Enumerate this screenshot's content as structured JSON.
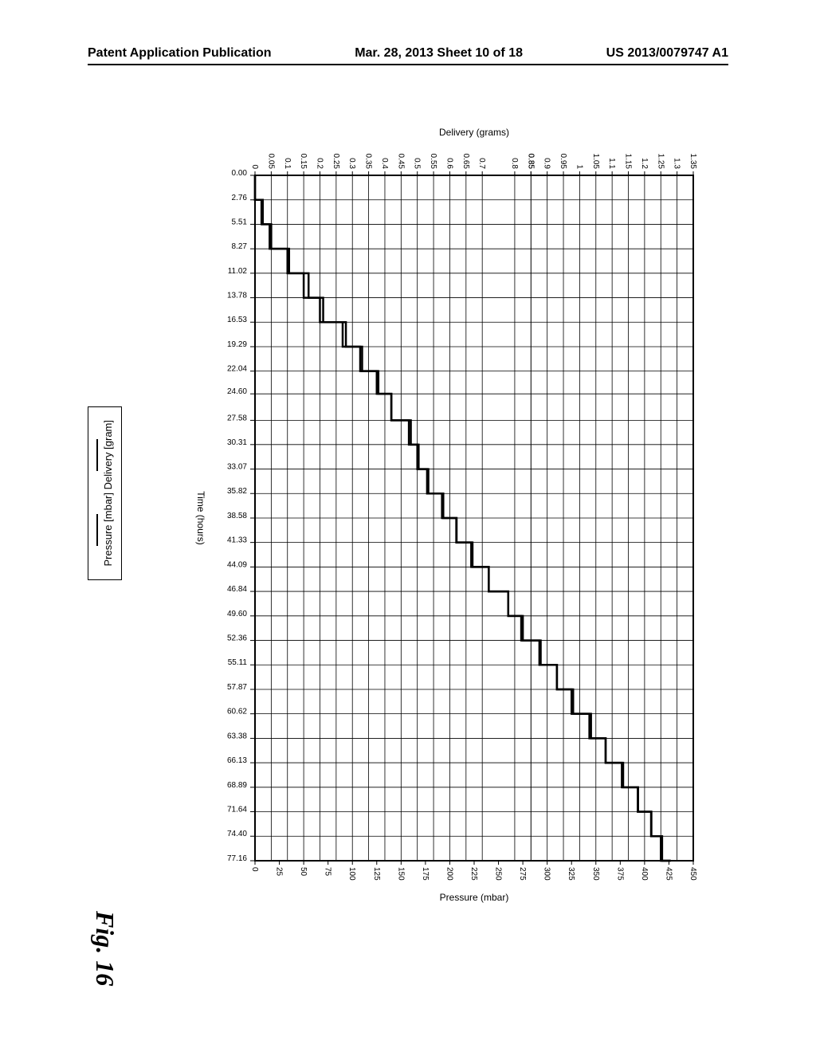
{
  "header": {
    "left": "Patent Application Publication",
    "center": "Mar. 28, 2013  Sheet 10 of 18",
    "right": "US 2013/0079747 A1"
  },
  "legend": {
    "item1": "Delivery [gram]",
    "item2": "Pressure [mbar]"
  },
  "figure_label": "Fig. 16",
  "chart": {
    "type": "line",
    "background_color": "#ffffff",
    "grid_color": "#000000",
    "line_color": "#000000",
    "line_width": 2.5,
    "font_family": "Arial",
    "tick_fontsize": 10,
    "axis_label_fontsize": 12,
    "rotated": true,
    "time_axis": {
      "label": "Time (hours)",
      "ticks": [
        "0.00",
        "2.76",
        "5.51",
        "8.27",
        "11.02",
        "13.78",
        "16.53",
        "19.29",
        "22.04",
        "24.60",
        "27.58",
        "30.31",
        "33.07",
        "35.82",
        "38.58",
        "41.33",
        "44.09",
        "46.84",
        "49.60",
        "52.36",
        "55.11",
        "57.87",
        "60.62",
        "63.38",
        "66.13",
        "68.89",
        "71.64",
        "74.40",
        "77.16"
      ],
      "domain": [
        0,
        77.16
      ]
    },
    "delivery_axis": {
      "label": "Delivery (grams)",
      "ticks": [
        0,
        0.05,
        0.1,
        0.15,
        0.2,
        0.25,
        0.3,
        0.35,
        0.4,
        0.45,
        0.5,
        0.55,
        0.6,
        0.65,
        0.7,
        0.85,
        0.8,
        0.85,
        0.9,
        0.95,
        1,
        1.05,
        1.1,
        1.15,
        1.2,
        1.25,
        1.3,
        1.35
      ],
      "domain": [
        0,
        1.35
      ]
    },
    "pressure_axis": {
      "label": "Pressure (mbar)",
      "ticks": [
        0,
        25,
        50,
        75,
        100,
        125,
        150,
        175,
        200,
        225,
        250,
        275,
        300,
        325,
        350,
        375,
        400,
        425,
        450
      ],
      "domain": [
        0,
        450
      ]
    },
    "series": {
      "combined_note": "Delivery and Pressure traces overlap visually as a single descending step-line from top-left to bottom-right in the rotated orientation",
      "delivery": [
        {
          "t": 0.0,
          "v": 0.0
        },
        {
          "t": 2.76,
          "v": 0.02
        },
        {
          "t": 5.51,
          "v": 0.05
        },
        {
          "t": 8.27,
          "v": 0.1
        },
        {
          "t": 11.02,
          "v": 0.15
        },
        {
          "t": 13.78,
          "v": 0.2
        },
        {
          "t": 16.53,
          "v": 0.28
        },
        {
          "t": 19.29,
          "v": 0.33
        },
        {
          "t": 22.04,
          "v": 0.38
        },
        {
          "t": 24.6,
          "v": 0.42
        },
        {
          "t": 27.58,
          "v": 0.48
        },
        {
          "t": 30.31,
          "v": 0.5
        },
        {
          "t": 33.07,
          "v": 0.53
        },
        {
          "t": 35.82,
          "v": 0.58
        },
        {
          "t": 38.58,
          "v": 0.62
        },
        {
          "t": 41.33,
          "v": 0.67
        },
        {
          "t": 44.09,
          "v": 0.72
        },
        {
          "t": 46.84,
          "v": 0.78
        },
        {
          "t": 49.6,
          "v": 0.82
        },
        {
          "t": 52.36,
          "v": 0.88
        },
        {
          "t": 55.11,
          "v": 0.93
        },
        {
          "t": 57.87,
          "v": 0.98
        },
        {
          "t": 60.62,
          "v": 1.03
        },
        {
          "t": 63.38,
          "v": 1.08
        },
        {
          "t": 66.13,
          "v": 1.13
        },
        {
          "t": 68.89,
          "v": 1.18
        },
        {
          "t": 71.64,
          "v": 1.22
        },
        {
          "t": 74.4,
          "v": 1.25
        },
        {
          "t": 77.16,
          "v": 1.28
        }
      ],
      "pressure": [
        {
          "t": 0.0,
          "v": 0
        },
        {
          "t": 2.76,
          "v": 8
        },
        {
          "t": 5.51,
          "v": 15
        },
        {
          "t": 8.27,
          "v": 35
        },
        {
          "t": 11.02,
          "v": 55
        },
        {
          "t": 13.78,
          "v": 70
        },
        {
          "t": 16.53,
          "v": 90
        },
        {
          "t": 19.29,
          "v": 108
        },
        {
          "t": 22.04,
          "v": 125
        },
        {
          "t": 24.6,
          "v": 140
        },
        {
          "t": 27.58,
          "v": 158
        },
        {
          "t": 30.31,
          "v": 168
        },
        {
          "t": 33.07,
          "v": 178
        },
        {
          "t": 35.82,
          "v": 192
        },
        {
          "t": 38.58,
          "v": 207
        },
        {
          "t": 41.33,
          "v": 222
        },
        {
          "t": 44.09,
          "v": 240
        },
        {
          "t": 46.84,
          "v": 260
        },
        {
          "t": 49.6,
          "v": 275
        },
        {
          "t": 52.36,
          "v": 292
        },
        {
          "t": 55.11,
          "v": 310
        },
        {
          "t": 57.87,
          "v": 325
        },
        {
          "t": 60.62,
          "v": 345
        },
        {
          "t": 63.38,
          "v": 360
        },
        {
          "t": 66.13,
          "v": 378
        },
        {
          "t": 68.89,
          "v": 393
        },
        {
          "t": 71.64,
          "v": 407
        },
        {
          "t": 74.4,
          "v": 418
        },
        {
          "t": 77.16,
          "v": 427
        }
      ]
    }
  }
}
